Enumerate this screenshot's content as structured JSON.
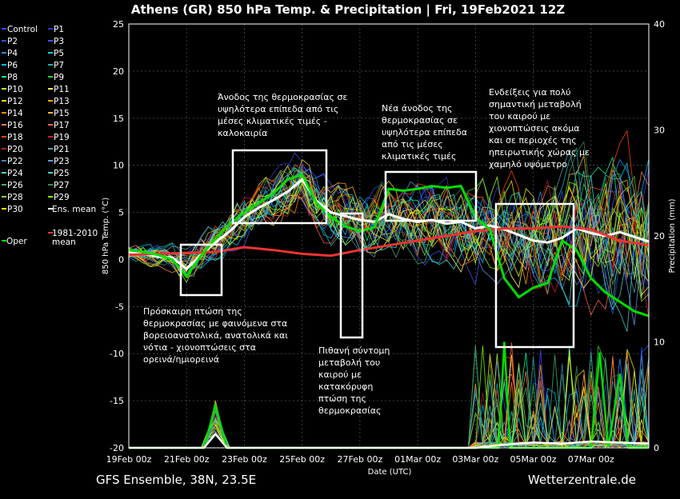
{
  "chart_data": {
    "type": "line",
    "title": "Athens  (GR)  850 hPa Temp. & Precipitation | Fri, 19Feb2021 12Z",
    "ylabel": "850 hPa Temp. (°C)",
    "y2label": "Precipitation (mm)",
    "xlabel": "Date (UTC)",
    "ylim": [
      -20,
      25
    ],
    "y2lim": [
      0,
      40
    ],
    "xlim": [
      0,
      18
    ],
    "yticks": [
      "25",
      "20",
      "15",
      "10",
      "5",
      "0",
      "-5",
      "-10",
      "-15",
      "-20"
    ],
    "y2ticks": [
      "40",
      "30",
      "20",
      "10",
      "0"
    ],
    "xticks": [
      "19Feb 00z",
      "21Feb 00z",
      "23Feb 00z",
      "25Feb 00z",
      "27Feb 00z",
      "01Mar 00z",
      "03Mar 00z",
      "05Mar 00z",
      "07Mar 00z"
    ],
    "grid": true,
    "legend_position": "left",
    "legend": [
      {
        "name": "Control",
        "color": "#4444ff"
      },
      {
        "name": "P1",
        "color": "#3333cc"
      },
      {
        "name": "P2",
        "color": "#2255dd"
      },
      {
        "name": "P3",
        "color": "#4455ee"
      },
      {
        "name": "P4",
        "color": "#1e90ff"
      },
      {
        "name": "P5",
        "color": "#00ced1"
      },
      {
        "name": "P6",
        "color": "#00bfff"
      },
      {
        "name": "P7",
        "color": "#20b2aa"
      },
      {
        "name": "P8",
        "color": "#00fa9a"
      },
      {
        "name": "P9",
        "color": "#32cd32"
      },
      {
        "name": "P10",
        "color": "#adff2f"
      },
      {
        "name": "P11",
        "color": "#ffff66"
      },
      {
        "name": "P12",
        "color": "#ffd700"
      },
      {
        "name": "P13",
        "color": "#ffa500"
      },
      {
        "name": "P14",
        "color": "#ff8c00"
      },
      {
        "name": "P15",
        "color": "#ffb347"
      },
      {
        "name": "P16",
        "color": "#ff7f50"
      },
      {
        "name": "P17",
        "color": "#ff6347"
      },
      {
        "name": "P18",
        "color": "#ff4500"
      },
      {
        "name": "P19",
        "color": "#dc143c"
      },
      {
        "name": "P20",
        "color": "#b22222"
      },
      {
        "name": "P21",
        "color": "#5f9ea0"
      },
      {
        "name": "P22",
        "color": "#4682b4"
      },
      {
        "name": "P23",
        "color": "#6495ed"
      },
      {
        "name": "P24",
        "color": "#40e0d0"
      },
      {
        "name": "P25",
        "color": "#48d1cc"
      },
      {
        "name": "P26",
        "color": "#3cb371"
      },
      {
        "name": "P27",
        "color": "#2e8b57"
      },
      {
        "name": "P28",
        "color": "#9acd32"
      },
      {
        "name": "P29",
        "color": "#7fff00"
      },
      {
        "name": "P30",
        "color": "#eeee00"
      },
      {
        "name": "Ens. mean",
        "color": "#ffffff"
      },
      {
        "name": "1981-2010\nmean",
        "color": "#ee3333"
      },
      {
        "name": "Oper",
        "color": "#00dd00"
      }
    ],
    "series": [
      {
        "name": "Ens. mean",
        "color": "#ffffff",
        "x": [
          0,
          0.5,
          1,
          1.5,
          2,
          2.5,
          3,
          3.5,
          4,
          4.5,
          5,
          5.5,
          6,
          6.5,
          7,
          7.5,
          8,
          8.5,
          9,
          9.5,
          10,
          10.5,
          11,
          11.5,
          12,
          12.5,
          13,
          13.5,
          14,
          14.5,
          15,
          15.5,
          16,
          16.5,
          17,
          17.5,
          18
        ],
        "values": [
          0.8,
          0.6,
          0.3,
          0.2,
          -1.0,
          0.5,
          1.8,
          3.0,
          4.5,
          5.5,
          6.3,
          7.2,
          8.5,
          6.2,
          5.0,
          4.6,
          4.2,
          4.0,
          4.8,
          4.3,
          4.0,
          4.2,
          3.8,
          4.0,
          3.3,
          3.6,
          3.2,
          2.6,
          2.0,
          1.8,
          2.3,
          3.3,
          2.8,
          2.5,
          2.9,
          2.4,
          1.9
        ]
      },
      {
        "name": "1981-2010\nmean",
        "color": "#ee3333",
        "x": [
          0,
          1,
          2,
          3,
          4,
          5,
          6,
          7,
          8,
          9,
          10,
          11,
          12,
          13,
          14,
          15,
          16,
          17,
          18
        ],
        "values": [
          0.5,
          0.6,
          0.7,
          0.8,
          1.3,
          1.0,
          0.6,
          0.4,
          1.0,
          1.5,
          2.0,
          2.5,
          3.0,
          3.3,
          3.3,
          3.5,
          3.2,
          2.0,
          1.5
        ]
      },
      {
        "name": "Oper",
        "color": "#00dd00",
        "x": [
          0,
          0.5,
          1,
          1.5,
          2,
          2.5,
          3,
          3.5,
          4,
          4.5,
          5,
          5.5,
          6,
          6.5,
          7,
          7.5,
          8,
          8.5,
          9,
          9.5,
          10,
          10.5,
          11,
          11.5,
          12,
          12.5,
          13,
          13.5,
          14,
          14.5,
          15,
          15.5,
          16,
          16.5,
          17,
          17.5,
          18
        ],
        "values": [
          1.0,
          0.8,
          0.5,
          0.0,
          -1.8,
          0.4,
          2.2,
          3.8,
          5.0,
          6.0,
          7.0,
          8.5,
          9.0,
          6.0,
          4.5,
          3.5,
          3.0,
          3.4,
          7.5,
          7.3,
          7.5,
          7.8,
          7.6,
          7.8,
          4.5,
          3.2,
          -2.0,
          -4.0,
          -3.0,
          -2.5,
          2.0,
          1.0,
          -2.0,
          -3.5,
          -4.5,
          -5.5,
          -6.0
        ]
      }
    ],
    "annotations": [
      {
        "lines": [
          "Άνοδος της θερμοκρασίας σε",
          "υψηλότερα επίπεδα από τις",
          "μέσες κλιματικές τιμές -",
          "καλοκαιρία"
        ]
      },
      {
        "lines": [
          "Νέα άνοδος της",
          "θερμοκρασίας σε",
          "υψηλότερα επίπεδα",
          "από τις μέσες",
          "κλιματικές τιμές"
        ]
      },
      {
        "lines": [
          "Ενδείξεις για πολύ",
          "σημαντική μεταβολή",
          "του καιρού με",
          "χιονοπτώσεις ακόμα",
          "και σε περιοχές της",
          "ηπειρωτικής χώρας με",
          "χαμηλό υψόμετρο"
        ]
      },
      {
        "lines": [
          "Πρόσκαιρη πτώση της",
          "θερμοκρασίας με φαινόμενα στα",
          "βορειοανατολικά, ανατολικά και",
          "νότια - χιονοπτώσεις στα",
          "ορεινά/ημιορεινά"
        ]
      },
      {
        "lines": [
          "Πιθανή σύντομη",
          "μεταβολή του",
          "καιρού με",
          "κατακόρυφη",
          "πτώση της",
          "θερμοκρασίας"
        ]
      }
    ]
  },
  "footer": {
    "left": "GFS Ensemble, 38N, 23.5E",
    "right": "Wetterzentrale.de"
  }
}
